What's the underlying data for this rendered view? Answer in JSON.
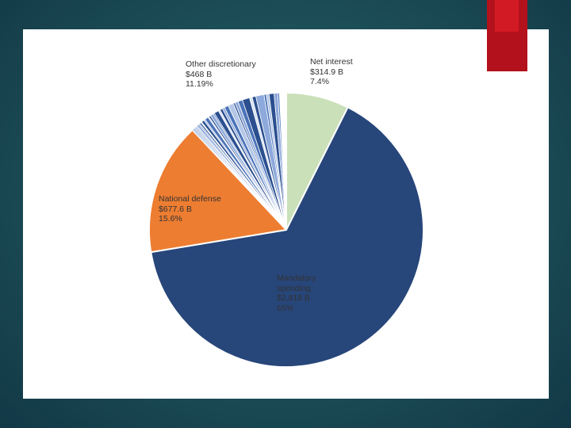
{
  "colors": {
    "mandatory": "#27467a",
    "defense": "#ed7d31",
    "net_interest": "#c9e0b9",
    "other_light": "#8ea9db",
    "other_mid": "#4a72b8",
    "other_dark": "#2b4f8f",
    "slice_border": "#ffffff",
    "accent_tab": "#b3121c"
  },
  "chart_data": {
    "type": "pie",
    "start_angle_deg": 0,
    "direction": "clockwise",
    "slices": [
      {
        "key": "net_interest",
        "label": "Net interest",
        "amount": "$314.9 B",
        "percent": 7.4,
        "percent_text": "7.4%",
        "color": "#c9e0b9"
      },
      {
        "key": "mandatory",
        "label": "Mandatory spending",
        "amount": "$2,818 B",
        "percent": 65,
        "percent_text": "65%",
        "color": "#27467a"
      },
      {
        "key": "defense",
        "label": "National defense",
        "amount": "$677.6 B",
        "percent": 15.6,
        "percent_text": "15.6%",
        "color": "#ed7d31"
      },
      {
        "key": "other",
        "label": "Other discretionary",
        "amount": "$468 B",
        "percent": 11.19,
        "percent_text": "11.19%",
        "color": "#4a72b8"
      }
    ],
    "other_subslices_percent": [
      0.1,
      0.15,
      0.12,
      0.2,
      0.1,
      0.25,
      0.12,
      0.18,
      0.1,
      0.3,
      0.15,
      0.4,
      0.12,
      0.2,
      0.35,
      0.15,
      0.5,
      0.2,
      0.3,
      0.25,
      0.45,
      0.6,
      0.2,
      0.35,
      0.5,
      0.8,
      0.3,
      0.4,
      0.9,
      0.25,
      0.3,
      0.55,
      0.4,
      0.17
    ],
    "other_subslices_colors": [
      "#2b4f8f",
      "#8ea9db",
      "#4a72b8",
      "#b4c7e7",
      "#2b4f8f",
      "#8ea9db",
      "#4a72b8",
      "#2b4f8f",
      "#dae3f3"
    ],
    "labels": {
      "other": {
        "line1": "Other discretionary",
        "line2": "$468 B",
        "line3": "11.19%"
      },
      "net_interest": {
        "line1": "Net interest",
        "line2": "$314.9 B",
        "line3": "7.4%"
      },
      "defense": {
        "line1": "National defense",
        "line2": "$677.6 B",
        "line3": "15.6%"
      },
      "mandatory": {
        "line1": "Mandatory",
        "line2": "spending",
        "line3": "$2,818 B",
        "line4": "65%"
      }
    }
  }
}
